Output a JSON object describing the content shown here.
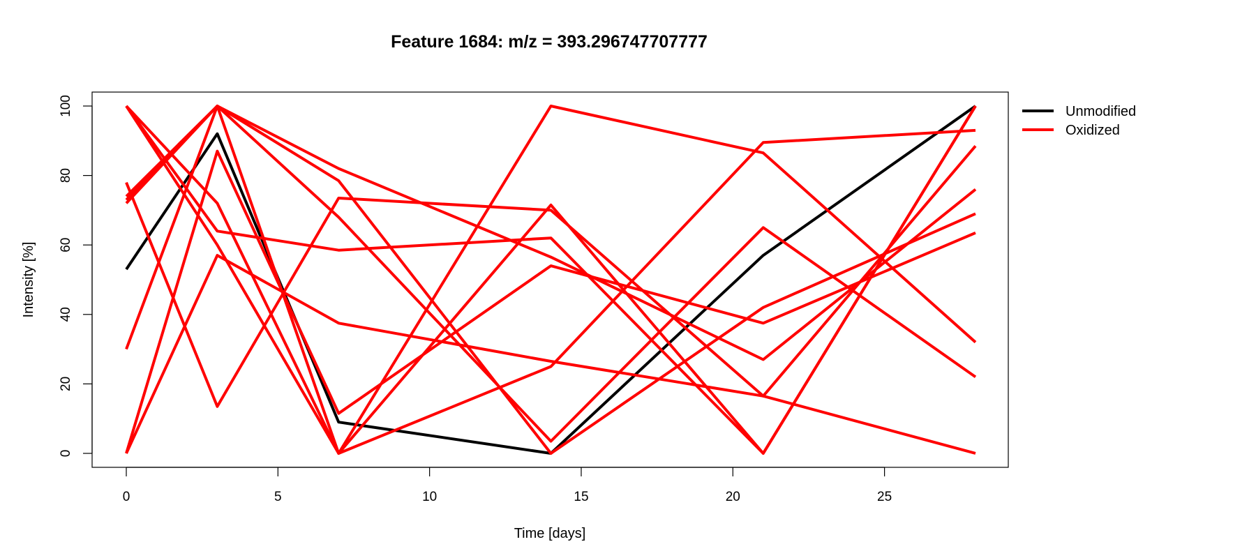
{
  "chart_data": {
    "type": "line",
    "title": "Feature 1684: m/z = 393.296747707777",
    "xlabel": "Time [days]",
    "ylabel": "Intensity [%]",
    "x": [
      0,
      3,
      7,
      14,
      21,
      28
    ],
    "xlim": [
      0,
      28
    ],
    "ylim": [
      0,
      100
    ],
    "x_ticks": [
      0,
      5,
      10,
      15,
      20,
      25
    ],
    "y_ticks": [
      0,
      20,
      40,
      60,
      80,
      100
    ],
    "grid": false,
    "legend_position": "right",
    "legend": [
      {
        "label": "Unmodified",
        "color": "#000000"
      },
      {
        "label": "Oxidized",
        "color": "#ff0000"
      }
    ],
    "series": [
      {
        "group": "Unmodified",
        "color": "#000000",
        "values": [
          53,
          92,
          9,
          0,
          57,
          100
        ]
      },
      {
        "group": "Oxidized",
        "color": "#ff0000",
        "values": [
          100,
          72,
          0,
          71.5,
          0,
          100
        ]
      },
      {
        "group": "Oxidized",
        "color": "#ff0000",
        "values": [
          100,
          64,
          58.5,
          62,
          0,
          100
        ]
      },
      {
        "group": "Oxidized",
        "color": "#ff0000",
        "values": [
          100,
          60,
          0,
          25,
          89.5,
          93
        ]
      },
      {
        "group": "Oxidized",
        "color": "#ff0000",
        "values": [
          78,
          13.5,
          73.5,
          70,
          16.5,
          88.5
        ]
      },
      {
        "group": "Oxidized",
        "color": "#ff0000",
        "values": [
          74,
          100,
          78.5,
          0,
          42,
          69
        ]
      },
      {
        "group": "Oxidized",
        "color": "#ff0000",
        "values": [
          73,
          100,
          82,
          56.5,
          27,
          76
        ]
      },
      {
        "group": "Oxidized",
        "color": "#ff0000",
        "values": [
          72,
          100,
          68,
          3.5,
          65,
          22
        ]
      },
      {
        "group": "Oxidized",
        "color": "#ff0000",
        "values": [
          30,
          100,
          0,
          100,
          86.5,
          32
        ]
      },
      {
        "group": "Oxidized",
        "color": "#ff0000",
        "values": [
          0,
          87,
          11.5,
          54,
          37.5,
          63.5
        ]
      },
      {
        "group": "Oxidized",
        "color": "#ff0000",
        "values": [
          0,
          57,
          37.5,
          26.5,
          16.5,
          0
        ]
      }
    ]
  }
}
